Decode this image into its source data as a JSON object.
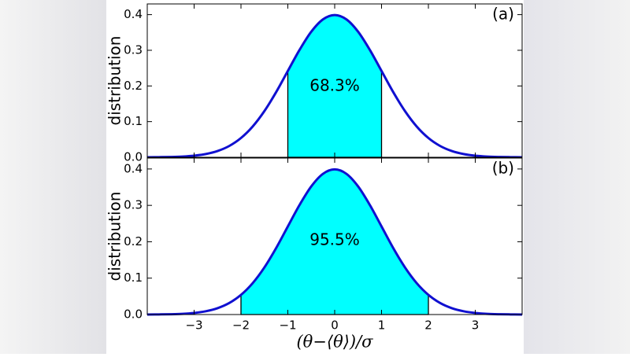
{
  "chart_data": [
    {
      "type": "line",
      "annotation": "(a)",
      "ylabel": "distribution",
      "shaded_label": "68.3%",
      "x": [
        -4,
        -3.75,
        -3.5,
        -3.25,
        -3,
        -2.75,
        -2.5,
        -2.25,
        -2,
        -1.75,
        -1.5,
        -1.25,
        -1,
        -0.75,
        -0.5,
        -0.25,
        0,
        0.25,
        0.5,
        0.75,
        1,
        1.25,
        1.5,
        1.75,
        2,
        2.25,
        2.5,
        2.75,
        3,
        3.25,
        3.5,
        3.75,
        4
      ],
      "series": [
        {
          "color": "#1010d0",
          "values": [
            0.0001,
            0.0004,
            0.0009,
            0.002,
            0.0044,
            0.0091,
            0.0175,
            0.0317,
            0.054,
            0.0863,
            0.1295,
            0.1826,
            0.242,
            0.3011,
            0.3521,
            0.3867,
            0.3989,
            0.3867,
            0.3521,
            0.3011,
            0.242,
            0.1826,
            0.1295,
            0.0863,
            0.054,
            0.0317,
            0.0175,
            0.0091,
            0.0044,
            0.002,
            0.0009,
            0.0004,
            0.0001
          ]
        }
      ],
      "shade": [
        -1,
        1
      ],
      "shade_color": "#00ffff",
      "xlim": [
        -4,
        4
      ],
      "ylim": [
        0,
        0.43
      ],
      "xticks": [
        -3,
        -2,
        -1,
        0,
        1,
        2,
        3
      ],
      "xtick_labels": false,
      "yticks": [
        {
          "value": 0,
          "label": "0.0"
        },
        0.1,
        0.2,
        0.3,
        0.4
      ]
    },
    {
      "type": "line",
      "annotation": "(b)",
      "ylabel": "distribution",
      "shaded_label": "95.5%",
      "xlabel": "(θ−⟨θ⟩)/σ",
      "x": [
        -4,
        -3.75,
        -3.5,
        -3.25,
        -3,
        -2.75,
        -2.5,
        -2.25,
        -2,
        -1.75,
        -1.5,
        -1.25,
        -1,
        -0.75,
        -0.5,
        -0.25,
        0,
        0.25,
        0.5,
        0.75,
        1,
        1.25,
        1.5,
        1.75,
        2,
        2.25,
        2.5,
        2.75,
        3,
        3.25,
        3.5,
        3.75,
        4
      ],
      "series": [
        {
          "color": "#1010d0",
          "values": [
            0.0001,
            0.0004,
            0.0009,
            0.002,
            0.0044,
            0.0091,
            0.0175,
            0.0317,
            0.054,
            0.0863,
            0.1295,
            0.1826,
            0.242,
            0.3011,
            0.3521,
            0.3867,
            0.3989,
            0.3867,
            0.3521,
            0.3011,
            0.242,
            0.1826,
            0.1295,
            0.0863,
            0.054,
            0.0317,
            0.0175,
            0.0091,
            0.0044,
            0.002,
            0.0009,
            0.0004,
            0.0001
          ]
        }
      ],
      "shade": [
        -2,
        2
      ],
      "shade_color": "#00ffff",
      "xlim": [
        -4,
        4
      ],
      "ylim": [
        0,
        0.43
      ],
      "xticks": [
        {
          "value": -3,
          "label": "−3"
        },
        {
          "value": -2,
          "label": "−2"
        },
        {
          "value": -1,
          "label": "−1"
        },
        0,
        1,
        2,
        3
      ],
      "xtick_labels": true,
      "yticks": [
        {
          "value": 0,
          "label": "0.0"
        },
        0.1,
        0.2,
        0.3,
        0.4
      ]
    }
  ]
}
